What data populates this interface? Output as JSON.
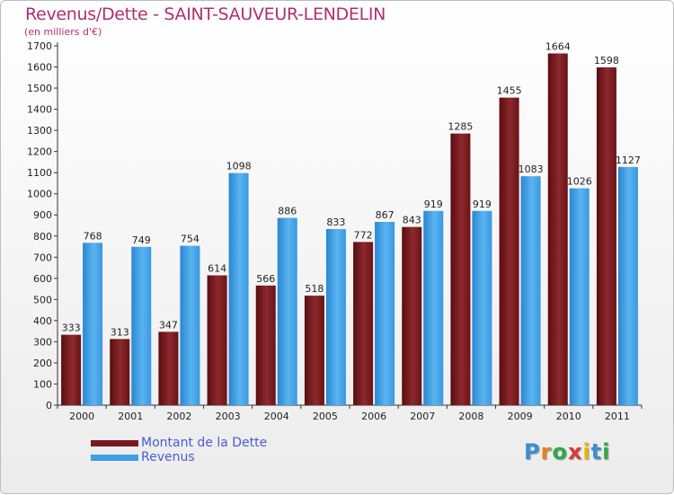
{
  "header": {
    "title": "Revenus/Dette - SAINT-SAUVEUR-LENDELIN",
    "subtitle": "(en milliers d'€)"
  },
  "chart_data": {
    "type": "bar",
    "title": "Revenus/Dette - SAINT-SAUVEUR-LENDELIN",
    "subtitle": "(en milliers d'€)",
    "categories": [
      "2000",
      "2001",
      "2002",
      "2003",
      "2004",
      "2005",
      "2006",
      "2007",
      "2008",
      "2009",
      "2010",
      "2011"
    ],
    "series": [
      {
        "name": "Montant de la Dette",
        "color": "#7a1a1e",
        "values": [
          333,
          313,
          347,
          614,
          566,
          518,
          772,
          843,
          1285,
          1455,
          1664,
          1598
        ]
      },
      {
        "name": "Revenus",
        "color": "#3f9ee5",
        "values": [
          768,
          749,
          754,
          1098,
          886,
          833,
          867,
          919,
          919,
          1083,
          1026,
          1127
        ]
      }
    ],
    "y_ticks": [
      0,
      100,
      200,
      300,
      400,
      500,
      600,
      700,
      800,
      900,
      1000,
      1100,
      1200,
      1300,
      1400,
      1500,
      1600,
      1700
    ],
    "ylim": [
      0,
      1700
    ],
    "grid": false,
    "legend_position": "bottom-left"
  },
  "legend": {
    "items": [
      {
        "label": "Montant de la Dette",
        "color": "#7a1a1e"
      },
      {
        "label": "Revenus",
        "color": "#3f9ee5"
      }
    ]
  },
  "logo": {
    "text": "Proxiti",
    "letters": [
      "P",
      "r",
      "o",
      "x",
      "i",
      "t",
      "i"
    ],
    "colors": [
      "#3a8fd6",
      "#e67e22",
      "#2eaa4a",
      "#d63a3a",
      "#e6b800",
      "#3a8fd6",
      "#2eaa4a"
    ]
  }
}
